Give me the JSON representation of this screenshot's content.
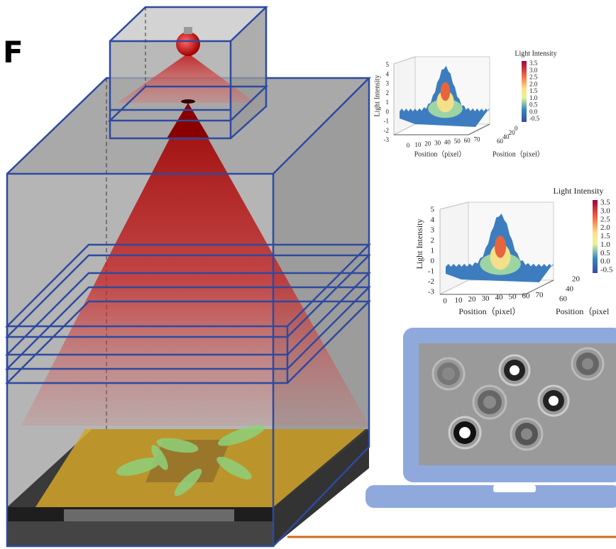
{
  "panel_label": "F",
  "plots": [
    {
      "colorbar_title": "Light Intensity",
      "colorbar_ticks": [
        "3.5",
        "3.0",
        "2.5",
        "2.0",
        "1.5",
        "1.0",
        "0.5",
        "0.0",
        "-0.5"
      ],
      "z_label": "Light Intensity",
      "z_ticks": [
        "5",
        "4",
        "3",
        "2",
        "1",
        "0",
        "-1",
        "-2",
        "-3"
      ],
      "x_ticks": [
        "0",
        "10",
        "20",
        "30",
        "40",
        "50",
        "60",
        "70"
      ],
      "x_label": "Position（pixel）",
      "y_ticks": [
        "0",
        "20",
        "40",
        "60"
      ],
      "y_label": "Position（pixel）"
    },
    {
      "colorbar_title": "Light Intensity",
      "colorbar_ticks": [
        "3.5",
        "3.0",
        "2.5",
        "2.0",
        "1.5",
        "1.0",
        "0.5",
        "0.0",
        "-0.5"
      ],
      "z_label": "Light Intensity",
      "z_ticks": [
        "5",
        "4",
        "3",
        "2",
        "1",
        "0",
        "-1",
        "-2",
        "-3"
      ],
      "x_ticks": [
        "0",
        "10",
        "20",
        "30",
        "40",
        "50",
        "60",
        "70"
      ],
      "x_label": "Position（pixel）",
      "y_ticks": [
        "20",
        "40",
        "60"
      ],
      "y_label": "Position（pixel"
    }
  ]
}
